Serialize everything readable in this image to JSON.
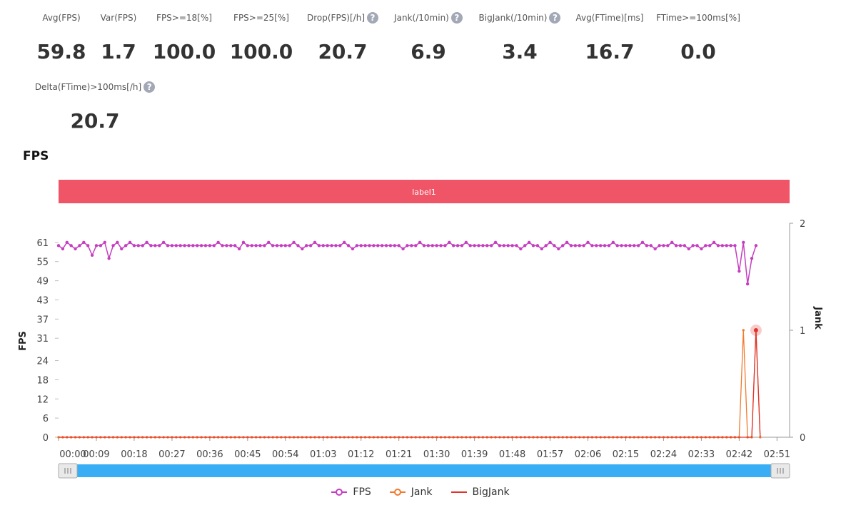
{
  "metrics": [
    {
      "label": "Avg(FPS)",
      "value": "59.8",
      "help": false
    },
    {
      "label": "Var(FPS)",
      "value": "1.7",
      "help": false
    },
    {
      "label": "FPS>=18[%]",
      "value": "100.0",
      "help": false
    },
    {
      "label": "FPS>=25[%]",
      "value": "100.0",
      "help": false
    },
    {
      "label": "Drop(FPS)[/h]",
      "value": "20.7",
      "help": true
    },
    {
      "label": "Jank(/10min)",
      "value": "6.9",
      "help": true
    },
    {
      "label": "BigJank(/10min)",
      "value": "3.4",
      "help": true
    },
    {
      "label": "Avg(FTime)[ms]",
      "value": "16.7",
      "help": false
    },
    {
      "label": "FTime>=100ms[%]",
      "value": "0.0",
      "help": false
    },
    {
      "label": "Delta(FTime)>100ms[/h]",
      "value": "20.7",
      "help": true
    }
  ],
  "section_title": "FPS",
  "help_glyph": "?",
  "chart_data": {
    "type": "line",
    "label_band": {
      "text": "label1",
      "color": "#ef5567"
    },
    "ylabel_left": "FPS",
    "ylabel_right": "Jank",
    "y_left_ticks": [
      0,
      6,
      12,
      18,
      24,
      31,
      37,
      43,
      49,
      55,
      61
    ],
    "y_left_range": [
      0,
      67
    ],
    "y_right_ticks": [
      0,
      1,
      2
    ],
    "y_right_range": [
      0,
      2
    ],
    "x_ticks": [
      "00:00",
      "00:09",
      "00:18",
      "00:27",
      "00:36",
      "00:45",
      "00:54",
      "01:03",
      "01:12",
      "01:21",
      "01:30",
      "01:39",
      "01:48",
      "01:57",
      "02:06",
      "02:15",
      "02:24",
      "02:33",
      "02:42",
      "02:51"
    ],
    "x_range": [
      0,
      174
    ],
    "slider": {
      "start": 0,
      "end": 1
    },
    "series": [
      {
        "name": "FPS",
        "axis": "left",
        "color": "#c43ebf",
        "values": [
          60,
          59,
          61,
          60,
          59,
          60,
          61,
          60,
          57,
          60,
          60,
          61,
          56,
          60,
          61,
          59,
          60,
          61,
          60,
          60,
          60,
          61,
          60,
          60,
          60,
          61,
          60,
          60,
          60,
          60,
          60,
          60,
          60,
          60,
          60,
          60,
          60,
          60,
          61,
          60,
          60,
          60,
          60,
          59,
          61,
          60,
          60,
          60,
          60,
          60,
          61,
          60,
          60,
          60,
          60,
          60,
          61,
          60,
          59,
          60,
          60,
          61,
          60,
          60,
          60,
          60,
          60,
          60,
          61,
          60,
          59,
          60,
          60,
          60,
          60,
          60,
          60,
          60,
          60,
          60,
          60,
          60,
          59,
          60,
          60,
          60,
          61,
          60,
          60,
          60,
          60,
          60,
          60,
          61,
          60,
          60,
          60,
          61,
          60,
          60,
          60,
          60,
          60,
          60,
          61,
          60,
          60,
          60,
          60,
          60,
          59,
          60,
          61,
          60,
          60,
          59,
          60,
          61,
          60,
          59,
          60,
          61,
          60,
          60,
          60,
          60,
          61,
          60,
          60,
          60,
          60,
          60,
          61,
          60,
          60,
          60,
          60,
          60,
          60,
          61,
          60,
          60,
          59,
          60,
          60,
          60,
          61,
          60,
          60,
          60,
          59,
          60,
          60,
          59,
          60,
          60,
          61,
          60,
          60,
          60,
          60,
          60,
          52,
          61,
          48,
          56,
          60
        ]
      },
      {
        "name": "Jank",
        "axis": "right",
        "color": "#f07a2f",
        "values": [
          0,
          0,
          0,
          0,
          0,
          0,
          0,
          0,
          0,
          0,
          0,
          0,
          0,
          0,
          0,
          0,
          0,
          0,
          0,
          0,
          0,
          0,
          0,
          0,
          0,
          0,
          0,
          0,
          0,
          0,
          0,
          0,
          0,
          0,
          0,
          0,
          0,
          0,
          0,
          0,
          0,
          0,
          0,
          0,
          0,
          0,
          0,
          0,
          0,
          0,
          0,
          0,
          0,
          0,
          0,
          0,
          0,
          0,
          0,
          0,
          0,
          0,
          0,
          0,
          0,
          0,
          0,
          0,
          0,
          0,
          0,
          0,
          0,
          0,
          0,
          0,
          0,
          0,
          0,
          0,
          0,
          0,
          0,
          0,
          0,
          0,
          0,
          0,
          0,
          0,
          0,
          0,
          0,
          0,
          0,
          0,
          0,
          0,
          0,
          0,
          0,
          0,
          0,
          0,
          0,
          0,
          0,
          0,
          0,
          0,
          0,
          0,
          0,
          0,
          0,
          0,
          0,
          0,
          0,
          0,
          0,
          0,
          0,
          0,
          0,
          0,
          0,
          0,
          0,
          0,
          0,
          0,
          0,
          0,
          0,
          0,
          0,
          0,
          0,
          0,
          0,
          0,
          0,
          0,
          0,
          0,
          0,
          0,
          0,
          0,
          0,
          0,
          0,
          0,
          0,
          0,
          0,
          0,
          0,
          0,
          0,
          0,
          0,
          1,
          0,
          0,
          1,
          0
        ]
      },
      {
        "name": "BigJank",
        "axis": "right",
        "color": "#e0332c",
        "values": [
          0,
          0,
          0,
          0,
          0,
          0,
          0,
          0,
          0,
          0,
          0,
          0,
          0,
          0,
          0,
          0,
          0,
          0,
          0,
          0,
          0,
          0,
          0,
          0,
          0,
          0,
          0,
          0,
          0,
          0,
          0,
          0,
          0,
          0,
          0,
          0,
          0,
          0,
          0,
          0,
          0,
          0,
          0,
          0,
          0,
          0,
          0,
          0,
          0,
          0,
          0,
          0,
          0,
          0,
          0,
          0,
          0,
          0,
          0,
          0,
          0,
          0,
          0,
          0,
          0,
          0,
          0,
          0,
          0,
          0,
          0,
          0,
          0,
          0,
          0,
          0,
          0,
          0,
          0,
          0,
          0,
          0,
          0,
          0,
          0,
          0,
          0,
          0,
          0,
          0,
          0,
          0,
          0,
          0,
          0,
          0,
          0,
          0,
          0,
          0,
          0,
          0,
          0,
          0,
          0,
          0,
          0,
          0,
          0,
          0,
          0,
          0,
          0,
          0,
          0,
          0,
          0,
          0,
          0,
          0,
          0,
          0,
          0,
          0,
          0,
          0,
          0,
          0,
          0,
          0,
          0,
          0,
          0,
          0,
          0,
          0,
          0,
          0,
          0,
          0,
          0,
          0,
          0,
          0,
          0,
          0,
          0,
          0,
          0,
          0,
          0,
          0,
          0,
          0,
          0,
          0,
          0,
          0,
          0,
          0,
          0,
          0,
          0,
          0,
          0,
          0,
          1,
          0
        ]
      }
    ],
    "grid": false,
    "legend_position": "bottom-center"
  }
}
